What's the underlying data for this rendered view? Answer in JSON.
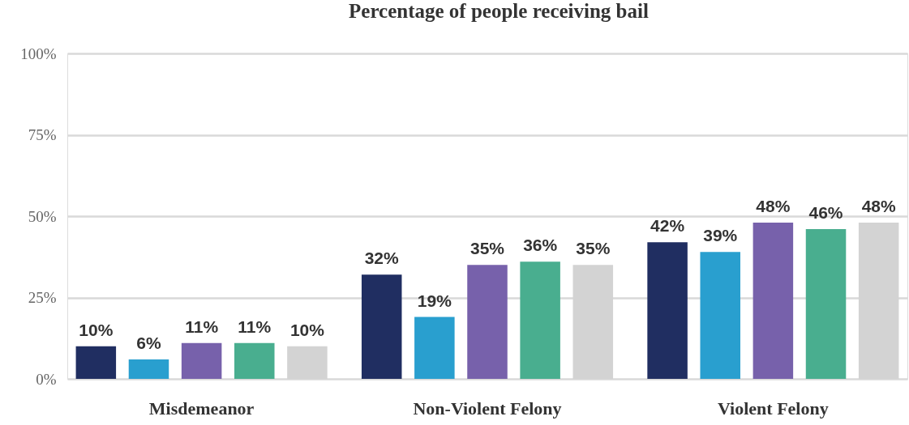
{
  "chart_data": {
    "type": "bar",
    "title": "Percentage of people receiving bail",
    "categories": [
      "Misdemeanor",
      "Non-Violent Felony",
      "Violent Felony"
    ],
    "series": [
      {
        "color": "#202e61",
        "values": [
          10,
          32,
          42
        ],
        "value_labels": [
          "10%",
          "32%",
          "42%"
        ]
      },
      {
        "color": "#299fcf",
        "values": [
          6,
          19,
          39
        ],
        "value_labels": [
          "6%",
          "19%",
          "39%"
        ]
      },
      {
        "color": "#7761ab",
        "values": [
          11,
          35,
          48
        ],
        "value_labels": [
          "11%",
          "35%",
          "48%"
        ]
      },
      {
        "color": "#49ae8f",
        "values": [
          11,
          36,
          46
        ],
        "value_labels": [
          "11%",
          "36%",
          "46%"
        ]
      },
      {
        "color": "#d3d3d3",
        "values": [
          10,
          35,
          48
        ],
        "value_labels": [
          "10%",
          "35%",
          "48%"
        ]
      }
    ],
    "ylim": [
      0,
      100
    ],
    "yticks": [
      {
        "value": 0,
        "label": "0%"
      },
      {
        "value": 25,
        "label": "25%"
      },
      {
        "value": 50,
        "label": "50%"
      },
      {
        "value": 75,
        "label": "75%"
      },
      {
        "value": 100,
        "label": "100%"
      }
    ],
    "grid": "y"
  }
}
